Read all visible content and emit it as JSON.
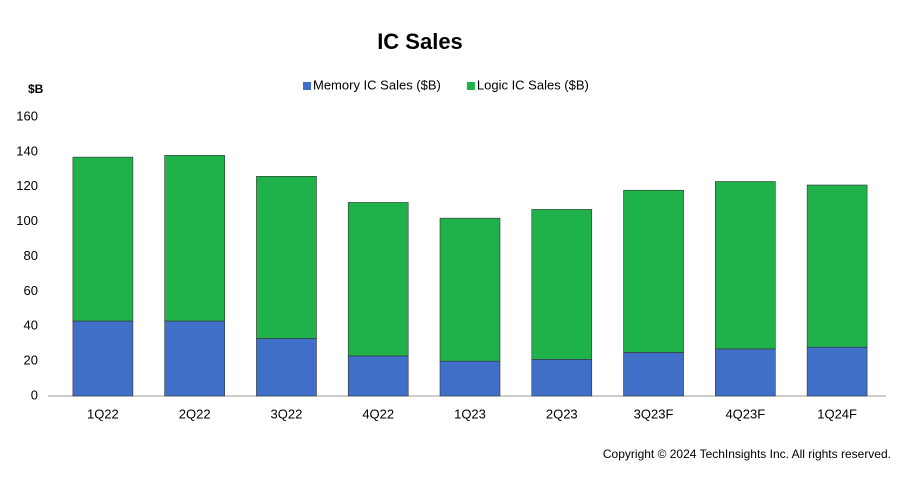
{
  "chart_data": {
    "type": "stacked_bar",
    "title": "IC Sales",
    "y_label": "$B",
    "categories": [
      "1Q22",
      "2Q22",
      "3Q22",
      "4Q22",
      "1Q23",
      "2Q23",
      "3Q23F",
      "4Q23F",
      "1Q24F"
    ],
    "series": [
      {
        "name": "Memory IC Sales ($B)",
        "color": "#3f6fc6",
        "values": [
          43,
          43,
          33,
          23,
          20,
          21,
          25,
          27,
          28
        ]
      },
      {
        "name": "Logic IC Sales ($B)",
        "color": "#1fb24a",
        "values": [
          94,
          95,
          93,
          88,
          82,
          86,
          93,
          96,
          93
        ]
      }
    ],
    "ylim": [
      0,
      160
    ],
    "yticks": [
      0,
      20,
      40,
      60,
      80,
      100,
      120,
      140,
      160
    ],
    "grid": false,
    "legend": "top",
    "footer": "Copyright © 2024 TechInsights Inc.  All rights reserved."
  }
}
